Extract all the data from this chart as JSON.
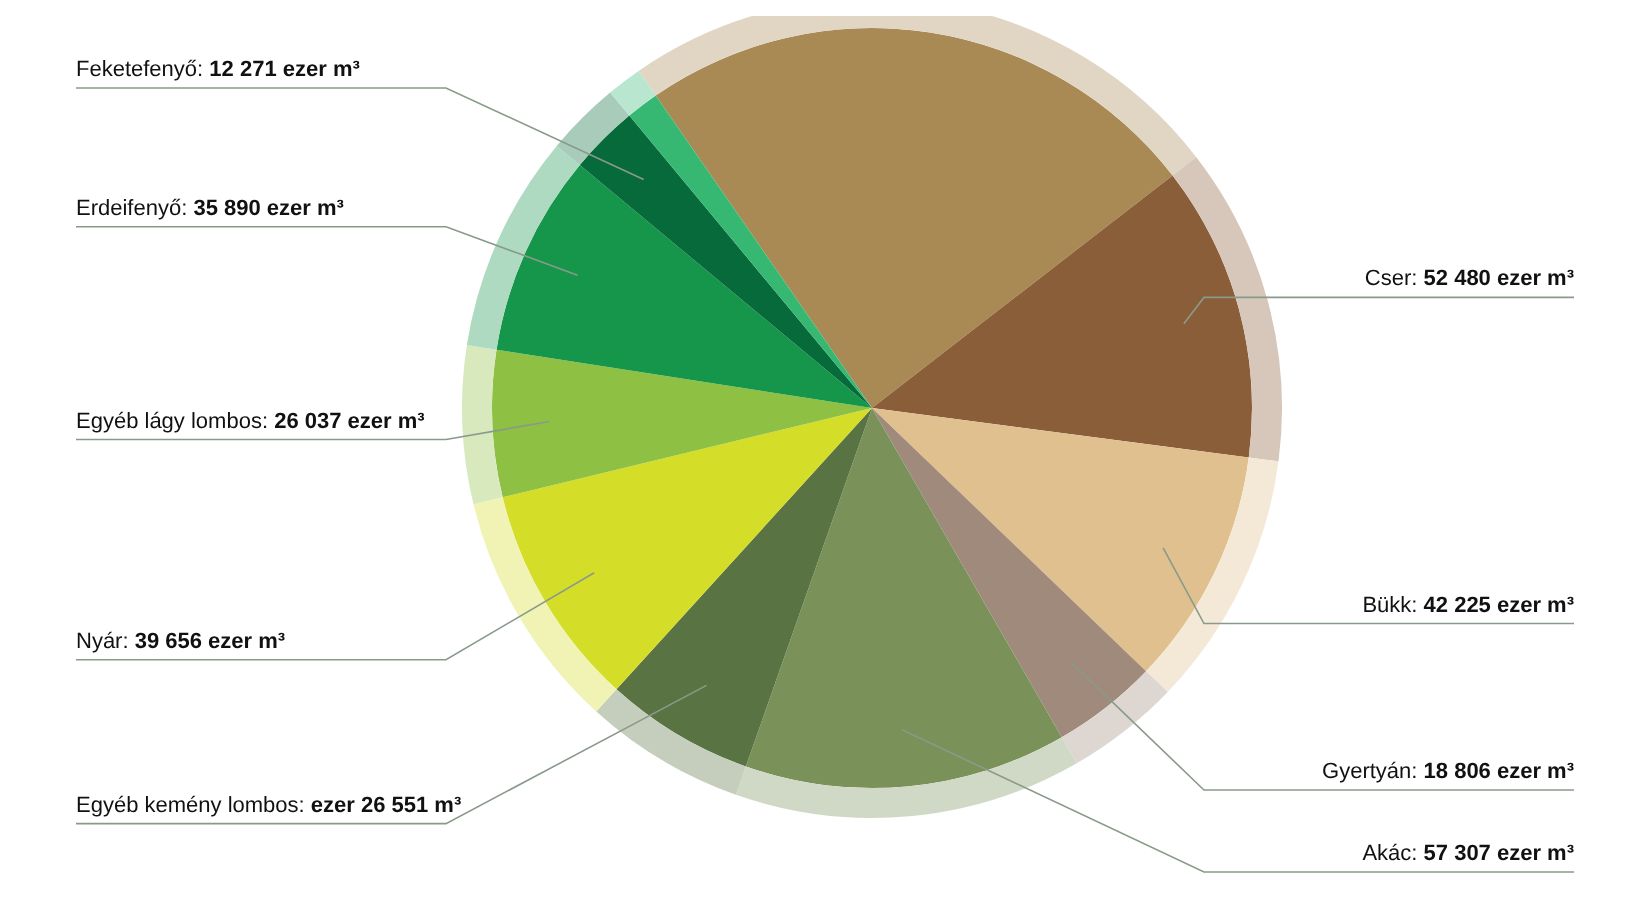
{
  "chart_data": {
    "type": "pie",
    "categories": [
      null,
      "Cser",
      "Bükk",
      "Gyertyán",
      "Akác",
      "Egyéb kemény lombos",
      "Nyár",
      "Egyéb lágy lombos",
      "Erdeifenyő",
      "Feketefenyő",
      null
    ],
    "values": [
      101000,
      52480,
      42225,
      18806,
      57307,
      26551,
      39656,
      26037,
      35890,
      12271,
      5800
    ],
    "colors": [
      "#a98a55",
      "#8b5e3a",
      "#dfc08e",
      "#a08a7c",
      "#7a9259",
      "#5a7343",
      "#d4de28",
      "#8dc043",
      "#15964a",
      "#076a3a",
      "#36b872"
    ],
    "value_labels": [
      null,
      ": 52 480 ezer m³",
      ": 42 225 ezer m³",
      ": 18 806 ezer m³",
      ": 57 307 ezer m³",
      ": ezer 26 551 m³",
      ": 39 656 ezer m³",
      ": 26 037 ezer m³",
      ": 35 890 ezer m³",
      ": 12 271 ezer m³",
      null
    ]
  }
}
